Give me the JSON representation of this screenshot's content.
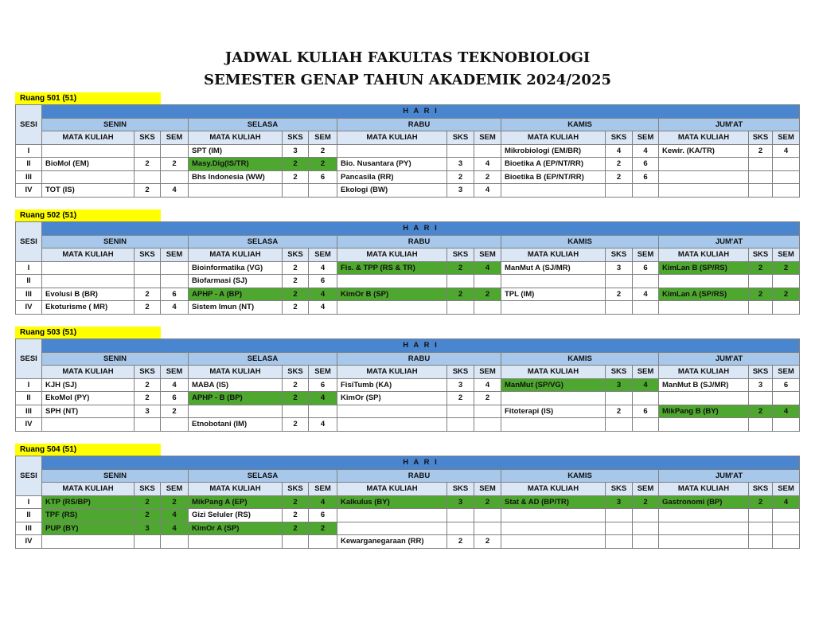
{
  "title": {
    "line1": "JADWAL KULIAH FAKULTAS TEKNOBIOLOGI",
    "line2": "SEMESTER GENAP TAHUN AKADEMIK 2024/2025"
  },
  "headers": {
    "hari": "H A R I",
    "sesi": "SESI",
    "days": [
      "SENIN",
      "SELASA",
      "RABU",
      "KAMIS",
      "JUM'AT"
    ],
    "mk": "MATA KULIAH",
    "sks": "SKS",
    "sem": "SEM"
  },
  "colors": {
    "header": "#4a86d0",
    "day": "#a7c8ea",
    "sub": "#dce7f5",
    "highlight": "#4ea72e",
    "room_label": "#ffff00"
  },
  "rooms": [
    {
      "label": "Ruang 501 (51)",
      "rows": [
        {
          "sesi": "I",
          "days": [
            [
              "",
              "",
              "",
              false
            ],
            [
              "SPT (IM)",
              "3",
              "2",
              false
            ],
            [
              "",
              "",
              "",
              false
            ],
            [
              "Mikrobiologi (EM/BR)",
              "4",
              "4",
              false
            ],
            [
              "Kewir. (KA/TR)",
              "2",
              "4",
              false
            ]
          ]
        },
        {
          "sesi": "II",
          "days": [
            [
              "BioMol (EM)",
              "2",
              "2",
              false
            ],
            [
              "Masy.Dig(IS/TR)",
              "2",
              "2",
              true
            ],
            [
              "Bio. Nusantara (PY)",
              "3",
              "4",
              false
            ],
            [
              "Bioetika A (EP/NT/RR)",
              "2",
              "6",
              false
            ],
            [
              "",
              "",
              "",
              false
            ]
          ]
        },
        {
          "sesi": "III",
          "days": [
            [
              "",
              "",
              "",
              false
            ],
            [
              "Bhs Indonesia (WW)",
              "2",
              "6",
              false
            ],
            [
              "Pancasila (RR)",
              "2",
              "2",
              false
            ],
            [
              "Bioetika B (EP/NT/RR)",
              "2",
              "6",
              false
            ],
            [
              "",
              "",
              "",
              false
            ]
          ]
        },
        {
          "sesi": "IV",
          "days": [
            [
              "TOT (IS)",
              "2",
              "4",
              false
            ],
            [
              "",
              "",
              "",
              false
            ],
            [
              "Ekologi  (BW)",
              "3",
              "4",
              false
            ],
            [
              "",
              "",
              "",
              false
            ],
            [
              "",
              "",
              "",
              false
            ]
          ]
        }
      ]
    },
    {
      "label": "Ruang 502 (51)",
      "rows": [
        {
          "sesi": "I",
          "days": [
            [
              "",
              "",
              "",
              false
            ],
            [
              "Bioinformatika (VG)",
              "2",
              "4",
              false
            ],
            [
              "Fis. & TPP (RS & TR)",
              "2",
              "4",
              true
            ],
            [
              "ManMut A (SJ/MR)",
              "3",
              "6",
              false
            ],
            [
              "KimLan B (SP/RS)",
              "2",
              "2",
              true
            ]
          ]
        },
        {
          "sesi": "II",
          "days": [
            [
              "",
              "",
              "",
              false
            ],
            [
              "Biofarmasi (SJ)",
              "2",
              "6",
              false
            ],
            [
              "",
              "",
              "",
              false
            ],
            [
              "",
              "",
              "",
              false
            ],
            [
              "",
              "",
              "",
              false
            ]
          ]
        },
        {
          "sesi": "III",
          "days": [
            [
              "Evolusi B (BR)",
              "2",
              "6",
              false
            ],
            [
              "APHP - A (BP)",
              "2",
              "4",
              true
            ],
            [
              "KimOr B  (SP)",
              "2",
              "2",
              true
            ],
            [
              "TPL (IM)",
              "2",
              "4",
              false
            ],
            [
              "KimLan A (SP/RS)",
              "2",
              "2",
              true
            ]
          ]
        },
        {
          "sesi": "IV",
          "days": [
            [
              "Ekoturisme ( MR)",
              "2",
              "4",
              false
            ],
            [
              "Sistem Imun (NT)",
              "2",
              "4",
              false
            ],
            [
              "",
              "",
              "",
              false
            ],
            [
              "",
              "",
              "",
              false
            ],
            [
              "",
              "",
              "",
              false
            ]
          ]
        }
      ]
    },
    {
      "label": "Ruang 503 (51)",
      "rows": [
        {
          "sesi": "I",
          "days": [
            [
              "KJH  (SJ)",
              "2",
              "4",
              false
            ],
            [
              "MABA (IS)",
              "2",
              "6",
              false
            ],
            [
              "FisiTumb (KA)",
              "3",
              "4",
              false
            ],
            [
              "ManMut (SP/VG)",
              "3",
              "4",
              true
            ],
            [
              "ManMut B (SJ/MR)",
              "3",
              "6",
              false
            ]
          ]
        },
        {
          "sesi": "II",
          "days": [
            [
              "EkoMol (PY)",
              "2",
              "6",
              false
            ],
            [
              "APHP - B (BP)",
              "2",
              "4",
              true
            ],
            [
              "KimOr (SP)",
              "2",
              "2",
              false
            ],
            [
              "",
              "",
              "",
              false
            ],
            [
              "",
              "",
              "",
              false
            ]
          ]
        },
        {
          "sesi": "III",
          "days": [
            [
              "SPH  (NT)",
              "3",
              "2",
              false
            ],
            [
              "",
              "",
              "",
              false
            ],
            [
              "",
              "",
              "",
              false
            ],
            [
              "Fitoterapi (IS)",
              "2",
              "6",
              false
            ],
            [
              "MikPang B (BY)",
              "2",
              "4",
              true
            ]
          ]
        },
        {
          "sesi": "IV",
          "days": [
            [
              "",
              "",
              "",
              false
            ],
            [
              "Etnobotani (IM)",
              "2",
              "4",
              false
            ],
            [
              "",
              "",
              "",
              false
            ],
            [
              "",
              "",
              "",
              false
            ],
            [
              "",
              "",
              "",
              false
            ]
          ]
        }
      ]
    },
    {
      "label": "Ruang 504 (51)",
      "rows": [
        {
          "sesi": "I",
          "days": [
            [
              "KTP (RS/BP)",
              "2",
              "2",
              true
            ],
            [
              "MikPang A (EP)",
              "2",
              "4",
              true
            ],
            [
              "Kalkulus (BY)",
              "3",
              "2",
              true
            ],
            [
              "Stat & AD (BP/TR)",
              "3",
              "2",
              true
            ],
            [
              "Gastronomi (BP)",
              "2",
              "4",
              true
            ]
          ]
        },
        {
          "sesi": "II",
          "days": [
            [
              "TPF (RS)",
              "2",
              "4",
              true
            ],
            [
              "Gizi Seluler (RS)",
              "2",
              "6",
              false
            ],
            [
              "",
              "",
              "",
              false
            ],
            [
              "",
              "",
              "",
              false
            ],
            [
              "",
              "",
              "",
              false
            ]
          ]
        },
        {
          "sesi": "III",
          "days": [
            [
              "PUP (BY)",
              "3",
              "4",
              true
            ],
            [
              "KimOr A (SP)",
              "2",
              "2",
              true
            ],
            [
              "",
              "",
              "",
              false
            ],
            [
              "",
              "",
              "",
              false
            ],
            [
              "",
              "",
              "",
              false
            ]
          ]
        },
        {
          "sesi": "IV",
          "days": [
            [
              "",
              "",
              "",
              false
            ],
            [
              "",
              "",
              "",
              false
            ],
            [
              "Kewarganegaraan (RR)",
              "2",
              "2",
              false
            ],
            [
              "",
              "",
              "",
              false
            ],
            [
              "",
              "",
              "",
              false
            ]
          ]
        }
      ]
    }
  ]
}
